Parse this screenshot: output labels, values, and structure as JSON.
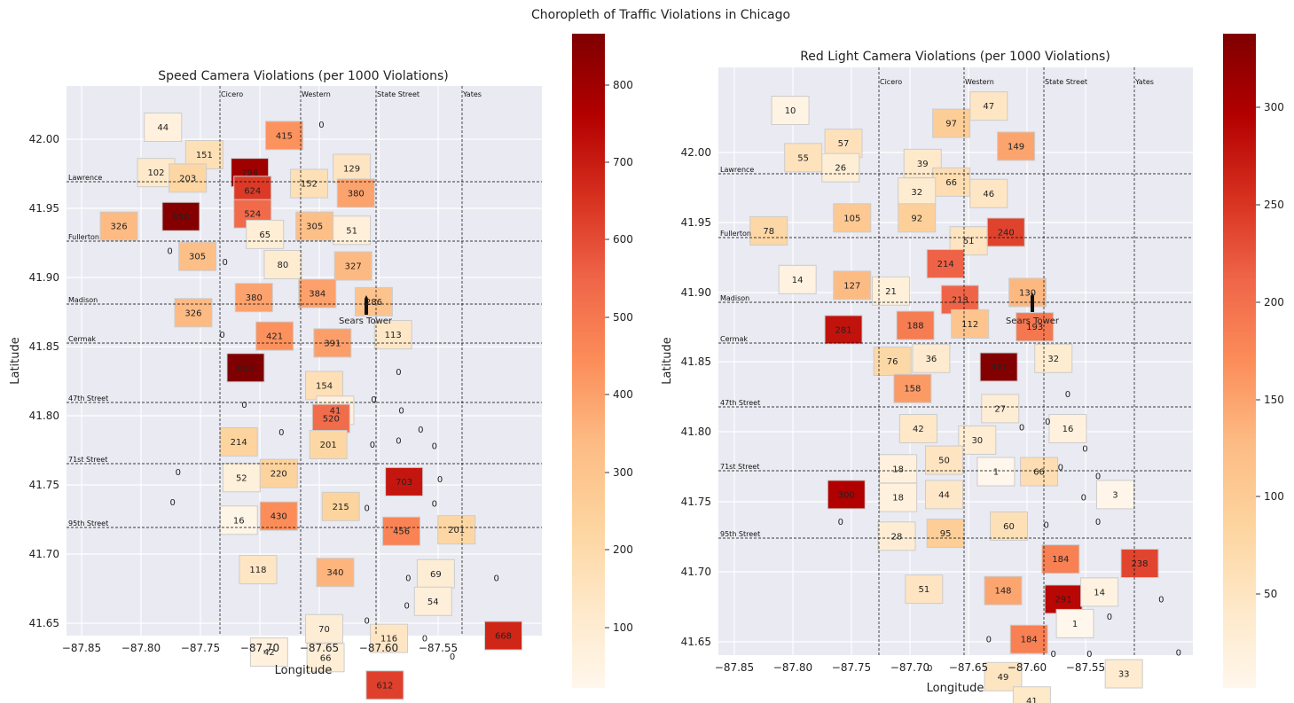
{
  "figure": {
    "title": "Choropleth of Traffic Violations in Chicago",
    "landmark": "Sears Tower"
  },
  "panels": [
    {
      "title": "Speed Camera Violations (per 1000 Violations)",
      "xlabel": "Longitude",
      "ylabel": "Latitude",
      "xticks": [
        "−87.85",
        "−87.80",
        "−87.75",
        "−87.70",
        "−87.65",
        "−87.60",
        "−87.55"
      ],
      "yticks": [
        "41.65",
        "41.70",
        "41.75",
        "41.80",
        "41.85",
        "41.90",
        "41.95",
        "42.00"
      ],
      "colorbar_ticks": [
        "100",
        "200",
        "300",
        "400",
        "500",
        "600",
        "700",
        "800"
      ],
      "vertical_streets": [
        "Cicero",
        "Western",
        "State Street",
        "Yates"
      ],
      "horizontal_streets": [
        "Lawrence",
        "Fullerton",
        "Madison",
        "Cermak",
        "47th Street",
        "71st Street",
        "95th Street"
      ]
    },
    {
      "title": "Red Light Camera Violations (per 1000 Violations)",
      "xlabel": "Longitude",
      "ylabel": "Latitude",
      "xticks": [
        "−87.85",
        "−87.80",
        "−87.75",
        "−87.70",
        "−87.65",
        "−87.60",
        "−87.55"
      ],
      "yticks": [
        "41.65",
        "41.70",
        "41.75",
        "41.80",
        "41.85",
        "41.90",
        "41.95",
        "42.00"
      ],
      "colorbar_ticks": [
        "50",
        "100",
        "150",
        "200",
        "250",
        "300"
      ],
      "vertical_streets": [
        "Cicero",
        "Western",
        "State Street",
        "Yates"
      ],
      "horizontal_streets": [
        "Lawrence",
        "Fullerton",
        "Madison",
        "Cermak",
        "47th Street",
        "71st Street",
        "95th Street"
      ]
    }
  ],
  "chart_data": [
    {
      "type": "heatmap",
      "title": "Speed Camera Violations (per 1000 Violations)",
      "xlabel": "Longitude",
      "ylabel": "Latitude",
      "xlim": [
        -87.855,
        -87.51
      ],
      "ylim": [
        41.64,
        42.04
      ],
      "colorbar_range": [
        0,
        860
      ],
      "colormap": "OrRd",
      "region_values": [
        {
          "lon": -87.785,
          "lat": 42.01,
          "value": 44
        },
        {
          "lon": -87.79,
          "lat": 41.977,
          "value": 102
        },
        {
          "lon": -87.755,
          "lat": 41.99,
          "value": 151
        },
        {
          "lon": -87.767,
          "lat": 41.973,
          "value": 203
        },
        {
          "lon": -87.722,
          "lat": 41.977,
          "value": 794
        },
        {
          "lon": -87.697,
          "lat": 42.004,
          "value": 415
        },
        {
          "lon": -87.67,
          "lat": 42.012,
          "value": 0
        },
        {
          "lon": -87.648,
          "lat": 41.98,
          "value": 129
        },
        {
          "lon": -87.679,
          "lat": 41.969,
          "value": 152
        },
        {
          "lon": -87.72,
          "lat": 41.964,
          "value": 624
        },
        {
          "lon": -87.645,
          "lat": 41.962,
          "value": 380
        },
        {
          "lon": -87.772,
          "lat": 41.945,
          "value": 850
        },
        {
          "lon": -87.817,
          "lat": 41.938,
          "value": 326
        },
        {
          "lon": -87.72,
          "lat": 41.947,
          "value": 524
        },
        {
          "lon": -87.675,
          "lat": 41.938,
          "value": 305
        },
        {
          "lon": -87.648,
          "lat": 41.935,
          "value": 51
        },
        {
          "lon": -87.711,
          "lat": 41.932,
          "value": 65
        },
        {
          "lon": -87.78,
          "lat": 41.92,
          "value": 0
        },
        {
          "lon": -87.76,
          "lat": 41.916,
          "value": 305
        },
        {
          "lon": -87.74,
          "lat": 41.912,
          "value": 0
        },
        {
          "lon": -87.698,
          "lat": 41.91,
          "value": 80
        },
        {
          "lon": -87.647,
          "lat": 41.909,
          "value": 327
        },
        {
          "lon": -87.719,
          "lat": 41.886,
          "value": 380
        },
        {
          "lon": -87.673,
          "lat": 41.889,
          "value": 384
        },
        {
          "lon": -87.632,
          "lat": 41.883,
          "value": 286
        },
        {
          "lon": -87.763,
          "lat": 41.875,
          "value": 326
        },
        {
          "lon": -87.742,
          "lat": 41.859,
          "value": 0
        },
        {
          "lon": -87.704,
          "lat": 41.858,
          "value": 421
        },
        {
          "lon": -87.662,
          "lat": 41.853,
          "value": 391
        },
        {
          "lon": -87.618,
          "lat": 41.859,
          "value": 113
        },
        {
          "lon": -87.725,
          "lat": 41.835,
          "value": 860
        },
        {
          "lon": -87.668,
          "lat": 41.822,
          "value": 154
        },
        {
          "lon": -87.614,
          "lat": 41.832,
          "value": 0
        },
        {
          "lon": -87.726,
          "lat": 41.808,
          "value": 0
        },
        {
          "lon": -87.632,
          "lat": 41.812,
          "value": 0
        },
        {
          "lon": -87.66,
          "lat": 41.804,
          "value": 41
        },
        {
          "lon": -87.612,
          "lat": 41.804,
          "value": 0
        },
        {
          "lon": -87.663,
          "lat": 41.798,
          "value": 520
        },
        {
          "lon": -87.598,
          "lat": 41.79,
          "value": 0
        },
        {
          "lon": -87.699,
          "lat": 41.788,
          "value": 0
        },
        {
          "lon": -87.73,
          "lat": 41.781,
          "value": 214
        },
        {
          "lon": -87.665,
          "lat": 41.779,
          "value": 201
        },
        {
          "lon": -87.633,
          "lat": 41.779,
          "value": 0
        },
        {
          "lon": -87.614,
          "lat": 41.782,
          "value": 0
        },
        {
          "lon": -87.588,
          "lat": 41.778,
          "value": 0
        },
        {
          "lon": -87.774,
          "lat": 41.759,
          "value": 0
        },
        {
          "lon": -87.728,
          "lat": 41.755,
          "value": 52
        },
        {
          "lon": -87.701,
          "lat": 41.758,
          "value": 220
        },
        {
          "lon": -87.61,
          "lat": 41.752,
          "value": 703
        },
        {
          "lon": -87.584,
          "lat": 41.754,
          "value": 0
        },
        {
          "lon": -87.778,
          "lat": 41.737,
          "value": 0
        },
        {
          "lon": -87.656,
          "lat": 41.734,
          "value": 215
        },
        {
          "lon": -87.637,
          "lat": 41.733,
          "value": 0
        },
        {
          "lon": -87.588,
          "lat": 41.736,
          "value": 0
        },
        {
          "lon": -87.73,
          "lat": 41.724,
          "value": 16
        },
        {
          "lon": -87.701,
          "lat": 41.727,
          "value": 430
        },
        {
          "lon": -87.612,
          "lat": 41.716,
          "value": 456
        },
        {
          "lon": -87.572,
          "lat": 41.717,
          "value": 201
        },
        {
          "lon": -87.716,
          "lat": 41.688,
          "value": 118
        },
        {
          "lon": -87.66,
          "lat": 41.686,
          "value": 340
        },
        {
          "lon": -87.607,
          "lat": 41.682,
          "value": 0
        },
        {
          "lon": -87.587,
          "lat": 41.685,
          "value": 69
        },
        {
          "lon": -87.543,
          "lat": 41.682,
          "value": 0
        },
        {
          "lon": -87.589,
          "lat": 41.665,
          "value": 54
        },
        {
          "lon": -87.608,
          "lat": 41.662,
          "value": 0
        },
        {
          "lon": -87.637,
          "lat": 41.651,
          "value": 0
        },
        {
          "lon": -87.668,
          "lat": 41.645,
          "value": 70
        },
        {
          "lon": -87.621,
          "lat": 41.638,
          "value": 116
        },
        {
          "lon": -87.595,
          "lat": 41.638,
          "value": 0
        },
        {
          "lon": -87.538,
          "lat": 41.64,
          "value": 668
        },
        {
          "lon": -87.708,
          "lat": 41.628,
          "value": 42
        },
        {
          "lon": -87.667,
          "lat": 41.624,
          "value": 66
        },
        {
          "lon": -87.575,
          "lat": 41.625,
          "value": 0
        },
        {
          "lon": -87.624,
          "lat": 41.604,
          "value": 612
        },
        {
          "lon": -87.604,
          "lat": 41.588,
          "value": 0
        },
        {
          "lon": -87.55,
          "lat": 41.588,
          "value": 0
        }
      ]
    },
    {
      "type": "heatmap",
      "title": "Red Light Camera Violations (per 1000 Violations)",
      "xlabel": "Longitude",
      "ylabel": "Latitude",
      "xlim": [
        -87.855,
        -87.525
      ],
      "ylim": [
        41.64,
        42.05
      ],
      "colorbar_range": [
        0,
        340
      ],
      "colormap": "OrRd",
      "region_values": [
        {
          "lon": -87.805,
          "lat": 42.02,
          "value": 10
        },
        {
          "lon": -87.768,
          "lat": 41.997,
          "value": 57
        },
        {
          "lon": -87.796,
          "lat": 41.987,
          "value": 55
        },
        {
          "lon": -87.77,
          "lat": 41.98,
          "value": 26
        },
        {
          "lon": -87.713,
          "lat": 41.983,
          "value": 39
        },
        {
          "lon": -87.693,
          "lat": 42.011,
          "value": 97
        },
        {
          "lon": -87.667,
          "lat": 42.023,
          "value": 47
        },
        {
          "lon": -87.648,
          "lat": 41.995,
          "value": 149
        },
        {
          "lon": -87.693,
          "lat": 41.97,
          "value": 66
        },
        {
          "lon": -87.717,
          "lat": 41.963,
          "value": 32
        },
        {
          "lon": -87.667,
          "lat": 41.962,
          "value": 46
        },
        {
          "lon": -87.762,
          "lat": 41.945,
          "value": 105
        },
        {
          "lon": -87.82,
          "lat": 41.936,
          "value": 78
        },
        {
          "lon": -87.717,
          "lat": 41.945,
          "value": 92
        },
        {
          "lon": -87.681,
          "lat": 41.929,
          "value": 51
        },
        {
          "lon": -87.655,
          "lat": 41.935,
          "value": 240
        },
        {
          "lon": -87.697,
          "lat": 41.913,
          "value": 214
        },
        {
          "lon": -87.8,
          "lat": 41.902,
          "value": 14
        },
        {
          "lon": -87.762,
          "lat": 41.898,
          "value": 127
        },
        {
          "lon": -87.735,
          "lat": 41.894,
          "value": 21
        },
        {
          "lon": -87.687,
          "lat": 41.888,
          "value": 213
        },
        {
          "lon": -87.64,
          "lat": 41.893,
          "value": 130
        },
        {
          "lon": -87.768,
          "lat": 41.867,
          "value": 281
        },
        {
          "lon": -87.718,
          "lat": 41.87,
          "value": 188
        },
        {
          "lon": -87.68,
          "lat": 41.871,
          "value": 112
        },
        {
          "lon": -87.635,
          "lat": 41.869,
          "value": 193
        },
        {
          "lon": -87.734,
          "lat": 41.845,
          "value": 76
        },
        {
          "lon": -87.707,
          "lat": 41.847,
          "value": 36
        },
        {
          "lon": -87.66,
          "lat": 41.841,
          "value": 337
        },
        {
          "lon": -87.622,
          "lat": 41.847,
          "value": 32
        },
        {
          "lon": -87.72,
          "lat": 41.826,
          "value": 158
        },
        {
          "lon": -87.612,
          "lat": 41.822,
          "value": 0
        },
        {
          "lon": -87.659,
          "lat": 41.812,
          "value": 27
        },
        {
          "lon": -87.626,
          "lat": 41.803,
          "value": 0
        },
        {
          "lon": -87.716,
          "lat": 41.798,
          "value": 42
        },
        {
          "lon": -87.644,
          "lat": 41.799,
          "value": 0
        },
        {
          "lon": -87.612,
          "lat": 41.798,
          "value": 16
        },
        {
          "lon": -87.675,
          "lat": 41.79,
          "value": 30
        },
        {
          "lon": -87.6,
          "lat": 41.784,
          "value": 0
        },
        {
          "lon": -87.698,
          "lat": 41.776,
          "value": 50
        },
        {
          "lon": -87.73,
          "lat": 41.77,
          "value": 18
        },
        {
          "lon": -87.617,
          "lat": 41.771,
          "value": 0
        },
        {
          "lon": -87.662,
          "lat": 41.768,
          "value": 1
        },
        {
          "lon": -87.632,
          "lat": 41.768,
          "value": 66
        },
        {
          "lon": -87.591,
          "lat": 41.765,
          "value": 0
        },
        {
          "lon": -87.766,
          "lat": 41.752,
          "value": 300
        },
        {
          "lon": -87.73,
          "lat": 41.75,
          "value": 18
        },
        {
          "lon": -87.698,
          "lat": 41.752,
          "value": 44
        },
        {
          "lon": -87.601,
          "lat": 41.75,
          "value": 0
        },
        {
          "lon": -87.579,
          "lat": 41.752,
          "value": 3
        },
        {
          "lon": -87.77,
          "lat": 41.733,
          "value": 0
        },
        {
          "lon": -87.591,
          "lat": 41.733,
          "value": 0
        },
        {
          "lon": -87.653,
          "lat": 41.73,
          "value": 60
        },
        {
          "lon": -87.627,
          "lat": 41.731,
          "value": 0
        },
        {
          "lon": -87.731,
          "lat": 41.723,
          "value": 28
        },
        {
          "lon": -87.697,
          "lat": 41.725,
          "value": 95
        },
        {
          "lon": -87.617,
          "lat": 41.707,
          "value": 184
        },
        {
          "lon": -87.562,
          "lat": 41.704,
          "value": 238
        },
        {
          "lon": -87.712,
          "lat": 41.686,
          "value": 51
        },
        {
          "lon": -87.657,
          "lat": 41.685,
          "value": 148
        },
        {
          "lon": -87.615,
          "lat": 41.679,
          "value": 291
        },
        {
          "lon": -87.59,
          "lat": 41.684,
          "value": 14
        },
        {
          "lon": -87.547,
          "lat": 41.679,
          "value": 0
        },
        {
          "lon": -87.583,
          "lat": 41.667,
          "value": 0
        },
        {
          "lon": -87.607,
          "lat": 41.662,
          "value": 1
        },
        {
          "lon": -87.639,
          "lat": 41.651,
          "value": 184
        },
        {
          "lon": -87.667,
          "lat": 41.651,
          "value": 0
        },
        {
          "lon": -87.622,
          "lat": 41.641,
          "value": 0
        },
        {
          "lon": -87.597,
          "lat": 41.641,
          "value": 0
        },
        {
          "lon": -87.535,
          "lat": 41.642,
          "value": 0
        },
        {
          "lon": -87.708,
          "lat": 41.631,
          "value": 0
        },
        {
          "lon": -87.657,
          "lat": 41.625,
          "value": 49
        },
        {
          "lon": -87.573,
          "lat": 41.627,
          "value": 33
        },
        {
          "lon": -87.637,
          "lat": 41.608,
          "value": 41
        },
        {
          "lon": -87.6,
          "lat": 41.593,
          "value": 0
        },
        {
          "lon": -87.55,
          "lat": 41.593,
          "value": 0
        }
      ]
    }
  ],
  "colors": {
    "axes_background": "#eaeaf2",
    "grid": "#ffffff",
    "region_edge": "#cccccc",
    "colormap_low": "#fff7ec",
    "colormap_high": "#7f0000"
  }
}
